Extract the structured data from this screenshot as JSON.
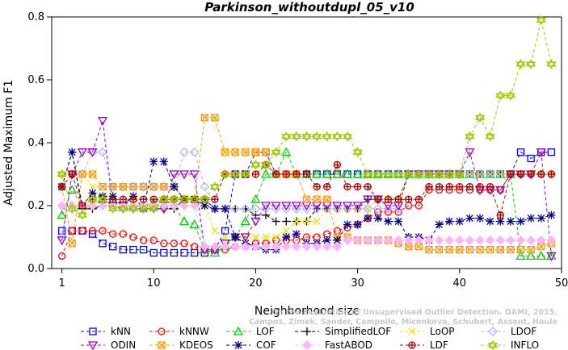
{
  "chart_data": {
    "type": "line",
    "title": "Parkinson_withoutdupl_05_v10",
    "xlabel": "Neighborhood size",
    "ylabel": "Adjusted Maximum F1",
    "xlim": [
      0,
      50
    ],
    "ylim": [
      0,
      0.8
    ],
    "xticks": [
      1,
      10,
      20,
      30,
      40,
      50
    ],
    "yticks": [
      0.0,
      0.2,
      0.4,
      0.6,
      0.8
    ],
    "grid": false,
    "legend_position": "bottom",
    "watermark": [
      "Campos, Zimek, Sander, Campello, Micenkova, Schubert, Assent, Houle",
      "On the Evaluation of Unsupervised Outlier Detection. DAMI, 2015."
    ],
    "x": [
      1,
      2,
      3,
      4,
      5,
      6,
      7,
      8,
      9,
      10,
      11,
      12,
      13,
      14,
      15,
      16,
      17,
      18,
      19,
      20,
      21,
      22,
      23,
      24,
      25,
      26,
      27,
      28,
      29,
      30,
      31,
      32,
      33,
      34,
      35,
      36,
      37,
      38,
      39,
      40,
      41,
      42,
      43,
      44,
      45,
      46,
      47,
      48,
      49
    ],
    "series": [
      {
        "name": "kNN",
        "color": "#0000ff",
        "marker": "square",
        "values": [
          0.12,
          0.12,
          0.12,
          0.11,
          0.08,
          0.07,
          0.06,
          0.06,
          0.06,
          0.05,
          0.05,
          0.05,
          0.05,
          0.05,
          0.05,
          0.06,
          0.12,
          0.3,
          0.3,
          0.37,
          0.37,
          0.3,
          0.3,
          0.3,
          0.3,
          0.3,
          0.3,
          0.3,
          0.3,
          0.3,
          0.3,
          0.3,
          0.3,
          0.3,
          0.3,
          0.3,
          0.3,
          0.3,
          0.3,
          0.3,
          0.3,
          0.3,
          0.3,
          0.3,
          0.3,
          0.37,
          0.35,
          0.37,
          0.37
        ]
      },
      {
        "name": "kNNW",
        "color": "#ff0000",
        "marker": "circle",
        "values": [
          0.04,
          0.12,
          0.12,
          0.12,
          0.12,
          0.11,
          0.11,
          0.1,
          0.09,
          0.09,
          0.08,
          0.08,
          0.08,
          0.07,
          0.06,
          0.06,
          0.06,
          0.07,
          0.07,
          0.08,
          0.08,
          0.09,
          0.09,
          0.09,
          0.1,
          0.1,
          0.11,
          0.12,
          0.13,
          0.14,
          0.16,
          0.18,
          0.18,
          0.18,
          0.2,
          0.2,
          0.25,
          0.25,
          0.25,
          0.25,
          0.25,
          0.25,
          0.25,
          0.25,
          0.3,
          0.3,
          0.3,
          0.3,
          0.3
        ]
      },
      {
        "name": "LOF",
        "color": "#00cc00",
        "marker": "triangle-up",
        "values": [
          0.17,
          0.25,
          0.2,
          0.2,
          0.22,
          0.22,
          0.2,
          0.2,
          0.2,
          0.21,
          0.22,
          0.2,
          0.15,
          0.14,
          0.06,
          0.05,
          0.07,
          0.1,
          0.15,
          0.22,
          0.3,
          0.3,
          0.37,
          0.3,
          0.3,
          0.3,
          0.3,
          0.3,
          0.3,
          0.3,
          0.3,
          0.3,
          0.3,
          0.3,
          0.3,
          0.3,
          0.3,
          0.3,
          0.3,
          0.3,
          0.3,
          0.3,
          0.3,
          0.3,
          0.3,
          0.04,
          0.04,
          0.04,
          0.04
        ]
      },
      {
        "name": "SimplifiedLOF",
        "color": "#000000",
        "marker": "plus",
        "values": [
          0.26,
          0.37,
          0.19,
          0.19,
          0.2,
          0.2,
          0.19,
          0.19,
          0.19,
          0.19,
          0.19,
          0.19,
          0.22,
          0.22,
          0.22,
          0.19,
          0.19,
          0.19,
          0.19,
          0.17,
          0.17,
          0.15,
          0.15,
          0.15,
          0.15,
          0.19,
          0.19,
          0.19,
          0.19,
          0.19,
          0.22,
          0.22,
          0.22,
          0.22,
          0.3,
          0.3,
          0.3,
          0.3,
          0.3,
          0.3,
          0.3,
          0.3,
          0.3,
          0.3,
          0.3,
          0.3,
          0.3,
          0.3,
          0.3
        ]
      },
      {
        "name": "LoOP",
        "color": "#e6e600",
        "marker": "x",
        "values": [
          0.3,
          0.3,
          0.3,
          0.26,
          0.26,
          0.26,
          0.26,
          0.22,
          0.2,
          0.2,
          0.19,
          0.22,
          0.22,
          0.22,
          0.2,
          0.12,
          0.1,
          0.1,
          0.1,
          0.1,
          0.1,
          0.1,
          0.12,
          0.15,
          0.15,
          0.15,
          0.19,
          0.19,
          0.19,
          0.19,
          0.19,
          0.22,
          0.22,
          0.22,
          0.3,
          0.3,
          0.3,
          0.3,
          0.3,
          0.3,
          0.3,
          0.3,
          0.3,
          0.3,
          0.3,
          0.3,
          0.3,
          0.3,
          0.3
        ]
      },
      {
        "name": "LDOF",
        "color": "#b3b3ff",
        "marker": "diamond",
        "values": [
          0.1,
          0.3,
          0.3,
          0.37,
          0.37,
          0.26,
          0.26,
          0.26,
          0.26,
          0.26,
          0.26,
          0.26,
          0.37,
          0.37,
          0.26,
          0.19,
          0.19,
          0.19,
          0.19,
          0.19,
          0.19,
          0.19,
          0.19,
          0.19,
          0.19,
          0.19,
          0.19,
          0.19,
          0.19,
          0.19,
          0.19,
          0.19,
          0.19,
          0.19,
          0.3,
          0.3,
          0.3,
          0.3,
          0.3,
          0.3,
          0.3,
          0.3,
          0.3,
          0.3,
          0.3,
          0.3,
          0.3,
          0.3,
          0.3
        ]
      },
      {
        "name": "ODIN",
        "color": "#9900cc",
        "marker": "triangle-down",
        "values": [
          0.09,
          0.3,
          0.37,
          0.37,
          0.47,
          0.2,
          0.2,
          0.19,
          0.19,
          0.19,
          0.19,
          0.3,
          0.3,
          0.3,
          0.06,
          0.06,
          0.08,
          0.1,
          0.1,
          0.15,
          0.2,
          0.2,
          0.2,
          0.2,
          0.2,
          0.2,
          0.2,
          0.2,
          0.2,
          0.2,
          0.22,
          0.22,
          0.2,
          0.2,
          0.3,
          0.3,
          0.3,
          0.3,
          0.3,
          0.3,
          0.37,
          0.25,
          0.25,
          0.25,
          0.3,
          0.3,
          0.3,
          0.37,
          0.04
        ]
      },
      {
        "name": "KDEOS",
        "color": "#ff9900",
        "marker": "square-x",
        "values": [
          0.26,
          0.08,
          0.3,
          0.3,
          0.26,
          0.26,
          0.26,
          0.26,
          0.26,
          0.26,
          0.26,
          0.26,
          0.22,
          0.22,
          0.48,
          0.48,
          0.37,
          0.37,
          0.37,
          0.37,
          0.37,
          0.3,
          0.3,
          0.3,
          0.22,
          0.22,
          0.22,
          0.1,
          0.1,
          0.09,
          0.09,
          0.09,
          0.09,
          0.08,
          0.07,
          0.07,
          0.06,
          0.06,
          0.06,
          0.06,
          0.06,
          0.06,
          0.06,
          0.06,
          0.06,
          0.06,
          0.06,
          0.07,
          0.08
        ]
      },
      {
        "name": "COF",
        "color": "#000080",
        "marker": "asterisk",
        "values": [
          0.26,
          0.37,
          0.2,
          0.24,
          0.23,
          0.23,
          0.2,
          0.23,
          0.19,
          0.34,
          0.34,
          0.26,
          0.22,
          0.22,
          0.2,
          0.19,
          0.19,
          0.1,
          0.08,
          0.07,
          0.06,
          0.06,
          0.1,
          0.11,
          0.08,
          0.08,
          0.09,
          0.09,
          0.14,
          0.14,
          0.16,
          0.16,
          0.15,
          0.15,
          0.1,
          0.1,
          0.09,
          0.14,
          0.15,
          0.15,
          0.16,
          0.16,
          0.15,
          0.15,
          0.15,
          0.15,
          0.16,
          0.16,
          0.17
        ]
      },
      {
        "name": "FastABOD",
        "color": "#ffb3ff",
        "marker": "diamond-filled",
        "values": [
          0.2,
          0.2,
          0.2,
          0.2,
          0.2,
          0.2,
          0.2,
          0.2,
          0.2,
          0.2,
          0.2,
          0.2,
          0.2,
          0.2,
          0.07,
          0.07,
          0.07,
          0.07,
          0.07,
          0.07,
          0.07,
          0.07,
          0.07,
          0.07,
          0.07,
          0.07,
          0.07,
          0.07,
          0.09,
          0.09,
          0.09,
          0.09,
          0.09,
          0.09,
          0.09,
          0.09,
          0.09,
          0.09,
          0.09,
          0.09,
          0.09,
          0.09,
          0.09,
          0.09,
          0.09,
          0.09,
          0.09,
          0.09,
          0.09
        ]
      },
      {
        "name": "LDF",
        "color": "#b30000",
        "marker": "circle-plus",
        "values": [
          0.26,
          0.3,
          0.2,
          0.22,
          0.22,
          0.22,
          0.22,
          0.22,
          0.22,
          0.22,
          0.22,
          0.22,
          0.22,
          0.22,
          0.22,
          0.22,
          0.3,
          0.3,
          0.3,
          0.3,
          0.33,
          0.3,
          0.3,
          0.3,
          0.3,
          0.26,
          0.26,
          0.33,
          0.26,
          0.26,
          0.26,
          0.22,
          0.22,
          0.22,
          0.22,
          0.22,
          0.26,
          0.26,
          0.26,
          0.26,
          0.26,
          0.26,
          0.26,
          0.17,
          0.3,
          0.3,
          0.3,
          0.3,
          0.3
        ]
      },
      {
        "name": "INFLO",
        "color": "#99cc00",
        "marker": "star",
        "values": [
          0.3,
          0.19,
          0.17,
          0.22,
          0.22,
          0.19,
          0.19,
          0.19,
          0.19,
          0.19,
          0.22,
          0.22,
          0.22,
          0.22,
          0.22,
          0.26,
          0.3,
          0.3,
          0.3,
          0.33,
          0.33,
          0.37,
          0.42,
          0.42,
          0.42,
          0.42,
          0.42,
          0.42,
          0.42,
          0.37,
          0.3,
          0.3,
          0.3,
          0.3,
          0.3,
          0.3,
          0.3,
          0.3,
          0.3,
          0.3,
          0.42,
          0.48,
          0.42,
          0.55,
          0.55,
          0.65,
          0.65,
          0.79,
          0.65
        ]
      }
    ]
  }
}
